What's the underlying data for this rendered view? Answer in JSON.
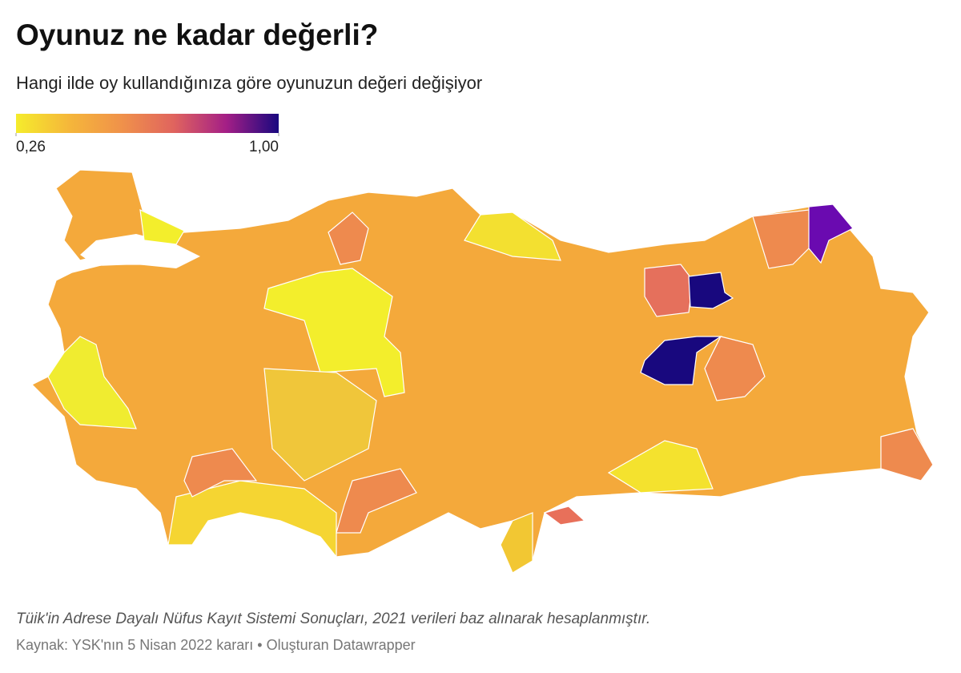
{
  "header": {
    "title": "Oyunuz ne kadar değerli?",
    "subtitle": "Hangi ilde oy kullandığınıza göre oyunuzun değeri değişiyor"
  },
  "legend": {
    "colors": [
      "#f5ec2c",
      "#f5b73a",
      "#f0924a",
      "#e0645e",
      "#a41f86",
      "#19087f"
    ],
    "ticks": [
      {
        "value": 0.26,
        "label": "0,26"
      },
      {
        "value": 1.0,
        "label": "1,00"
      }
    ]
  },
  "footer": {
    "note": "Tüik'in Adrese Dayalı Nüfus Kayıt Sistemi Sonuçları, 2021 verileri baz alınarak hesaplanmıştır.",
    "source": "Kaynak: YSK'nın 5 Nisan 2022 kararı • Oluşturan Datawrapper"
  }
}
